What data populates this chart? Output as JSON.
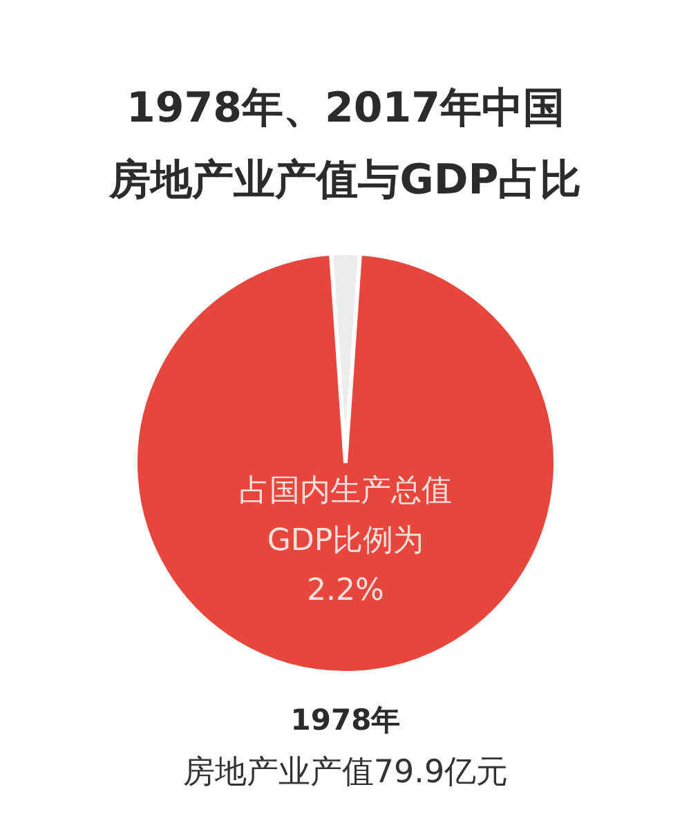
{
  "chart_data": {
    "type": "pie",
    "title": "1978年、2017年中国",
    "subtitle": "房地产业产值与GDP占比",
    "categories": [
      null,
      null
    ],
    "values": [
      2.2,
      97.8
    ],
    "colors": [
      "#ececec",
      "#e8453c"
    ],
    "annotations": [
      "占国内生产总值",
      "GDP比例为",
      "2.2%",
      "1978年",
      "房地产业产值79.9亿元"
    ]
  }
}
